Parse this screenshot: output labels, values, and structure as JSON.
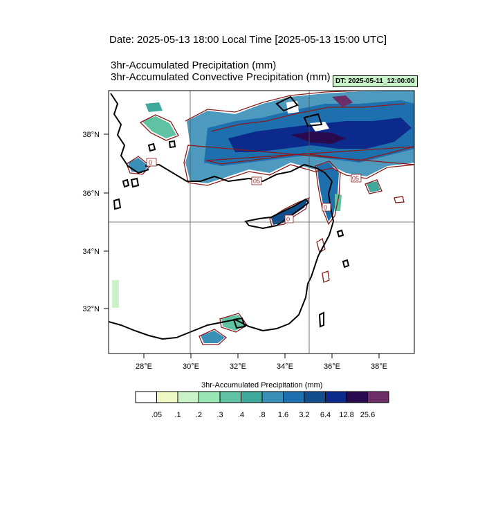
{
  "header": {
    "date_line": "Date: 2025-05-13  18:00 Local Time [2025-05-13  15:00 UTC]",
    "title_line_1": "3hr-Accumulated Precipitation   (mm)",
    "title_line_2": "3hr-Accumulated Convective Precipitation   (mm)",
    "dt_label": "DT: 2025-05-11_12:00:00"
  },
  "map": {
    "lat_labels": [
      "38°N",
      "36°N",
      "34°N",
      "32°N"
    ],
    "lon_labels": [
      "28°E",
      "30°E",
      "32°E",
      "34°E",
      "36°E",
      "38°E"
    ],
    "contour_labels": [
      "0",
      "05",
      "0",
      "05",
      "0"
    ],
    "colors": {
      "coast": "#000000",
      "contour": "#8b1a1a",
      "grid": "#555555"
    }
  },
  "colorbar": {
    "title": "3hr-Accumulated Precipitation   (mm)",
    "labels": [
      ".05",
      ".1",
      ".2",
      ".3",
      ".4",
      ".8",
      "1.6",
      "3.2",
      "6.4",
      "12.8",
      "25.6"
    ],
    "colors": [
      "#ffffff",
      "#edf8c4",
      "#c9f2c9",
      "#98e6b4",
      "#5fc3a3",
      "#3ea99a",
      "#3a8fb7",
      "#1e6fae",
      "#114f8c",
      "#0c2a8c",
      "#2a0a4e",
      "#6b2e66"
    ]
  }
}
